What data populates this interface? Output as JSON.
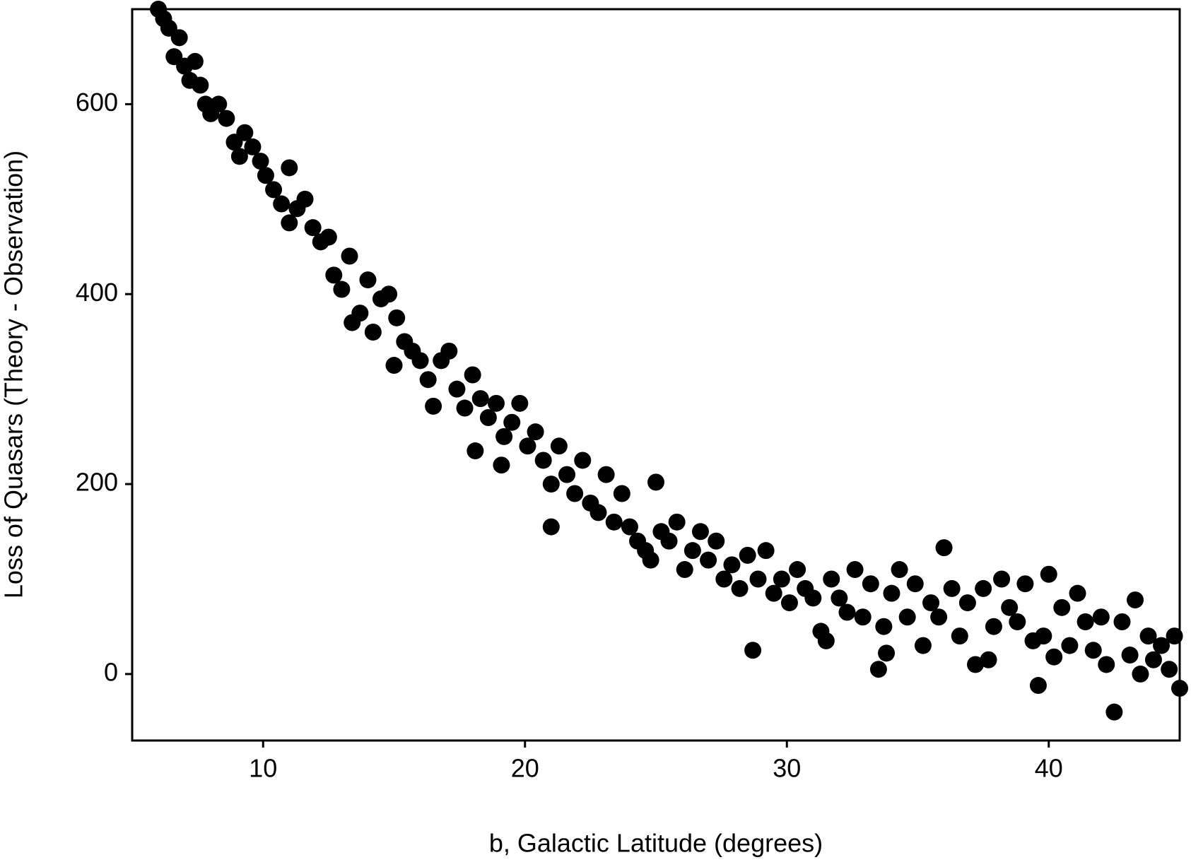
{
  "chart_data": {
    "type": "scatter",
    "xlabel": "b, Galactic Latitude (degrees)",
    "ylabel": "Loss of Quasars (Theory - Observation)",
    "color": "#000000",
    "xlim": [
      5,
      45
    ],
    "ylim": [
      -70,
      700
    ],
    "xticks": [
      10,
      20,
      30,
      40
    ],
    "yticks": [
      0,
      200,
      400,
      600
    ],
    "grid": false,
    "x": [
      6.0,
      6.2,
      6.4,
      6.6,
      6.8,
      7.0,
      7.2,
      7.4,
      7.6,
      7.8,
      8.0,
      8.3,
      8.6,
      8.9,
      9.1,
      9.3,
      9.6,
      9.9,
      10.1,
      10.4,
      10.7,
      11.0,
      11.0,
      11.3,
      11.6,
      11.9,
      12.2,
      12.5,
      12.7,
      13.0,
      13.3,
      13.4,
      13.7,
      14.0,
      14.2,
      14.5,
      14.8,
      15.0,
      15.1,
      15.4,
      15.7,
      16.0,
      16.3,
      16.5,
      16.8,
      17.1,
      17.4,
      17.7,
      18.0,
      18.1,
      18.3,
      18.6,
      18.9,
      19.1,
      19.2,
      19.5,
      19.8,
      20.1,
      20.4,
      20.7,
      21.0,
      21.0,
      21.3,
      21.6,
      21.9,
      22.2,
      22.5,
      22.8,
      23.1,
      23.4,
      23.7,
      24.0,
      24.3,
      24.6,
      24.8,
      25.0,
      25.2,
      25.5,
      25.8,
      26.1,
      26.4,
      26.7,
      27.0,
      27.3,
      27.6,
      27.9,
      28.2,
      28.5,
      28.7,
      28.9,
      29.2,
      29.5,
      29.8,
      30.1,
      30.4,
      30.7,
      31.0,
      31.3,
      31.5,
      31.7,
      32.0,
      32.3,
      32.6,
      32.9,
      33.2,
      33.5,
      33.7,
      33.8,
      34.0,
      34.3,
      34.6,
      34.9,
      35.2,
      35.5,
      35.8,
      36.0,
      36.3,
      36.6,
      36.9,
      37.2,
      37.5,
      37.7,
      37.9,
      38.2,
      38.5,
      38.8,
      39.1,
      39.4,
      39.6,
      39.8,
      40.0,
      40.2,
      40.5,
      40.8,
      41.1,
      41.4,
      41.7,
      42.0,
      42.2,
      42.5,
      42.8,
      43.1,
      43.3,
      43.5,
      43.8,
      44.0,
      44.3,
      44.6,
      44.8,
      45.0
    ],
    "values": [
      700,
      690,
      680,
      650,
      670,
      640,
      625,
      645,
      620,
      600,
      590,
      600,
      585,
      560,
      545,
      570,
      555,
      540,
      525,
      510,
      495,
      533,
      475,
      490,
      500,
      470,
      455,
      460,
      420,
      405,
      440,
      370,
      380,
      415,
      360,
      395,
      400,
      325,
      375,
      350,
      340,
      330,
      310,
      282,
      330,
      340,
      300,
      280,
      315,
      235,
      290,
      270,
      285,
      220,
      250,
      265,
      285,
      240,
      255,
      225,
      155,
      200,
      240,
      210,
      190,
      225,
      180,
      170,
      210,
      160,
      190,
      155,
      140,
      130,
      120,
      202,
      150,
      140,
      160,
      110,
      130,
      150,
      120,
      140,
      100,
      115,
      90,
      125,
      25,
      100,
      130,
      85,
      100,
      75,
      110,
      90,
      80,
      45,
      35,
      100,
      80,
      65,
      110,
      60,
      95,
      5,
      50,
      22,
      85,
      110,
      60,
      95,
      30,
      75,
      60,
      133,
      90,
      40,
      75,
      10,
      90,
      15,
      50,
      100,
      70,
      55,
      95,
      35,
      -12,
      40,
      105,
      18,
      70,
      30,
      85,
      55,
      25,
      60,
      10,
      -40,
      55,
      20,
      78,
      0,
      40,
      15,
      30,
      5,
      40,
      -15
    ]
  }
}
